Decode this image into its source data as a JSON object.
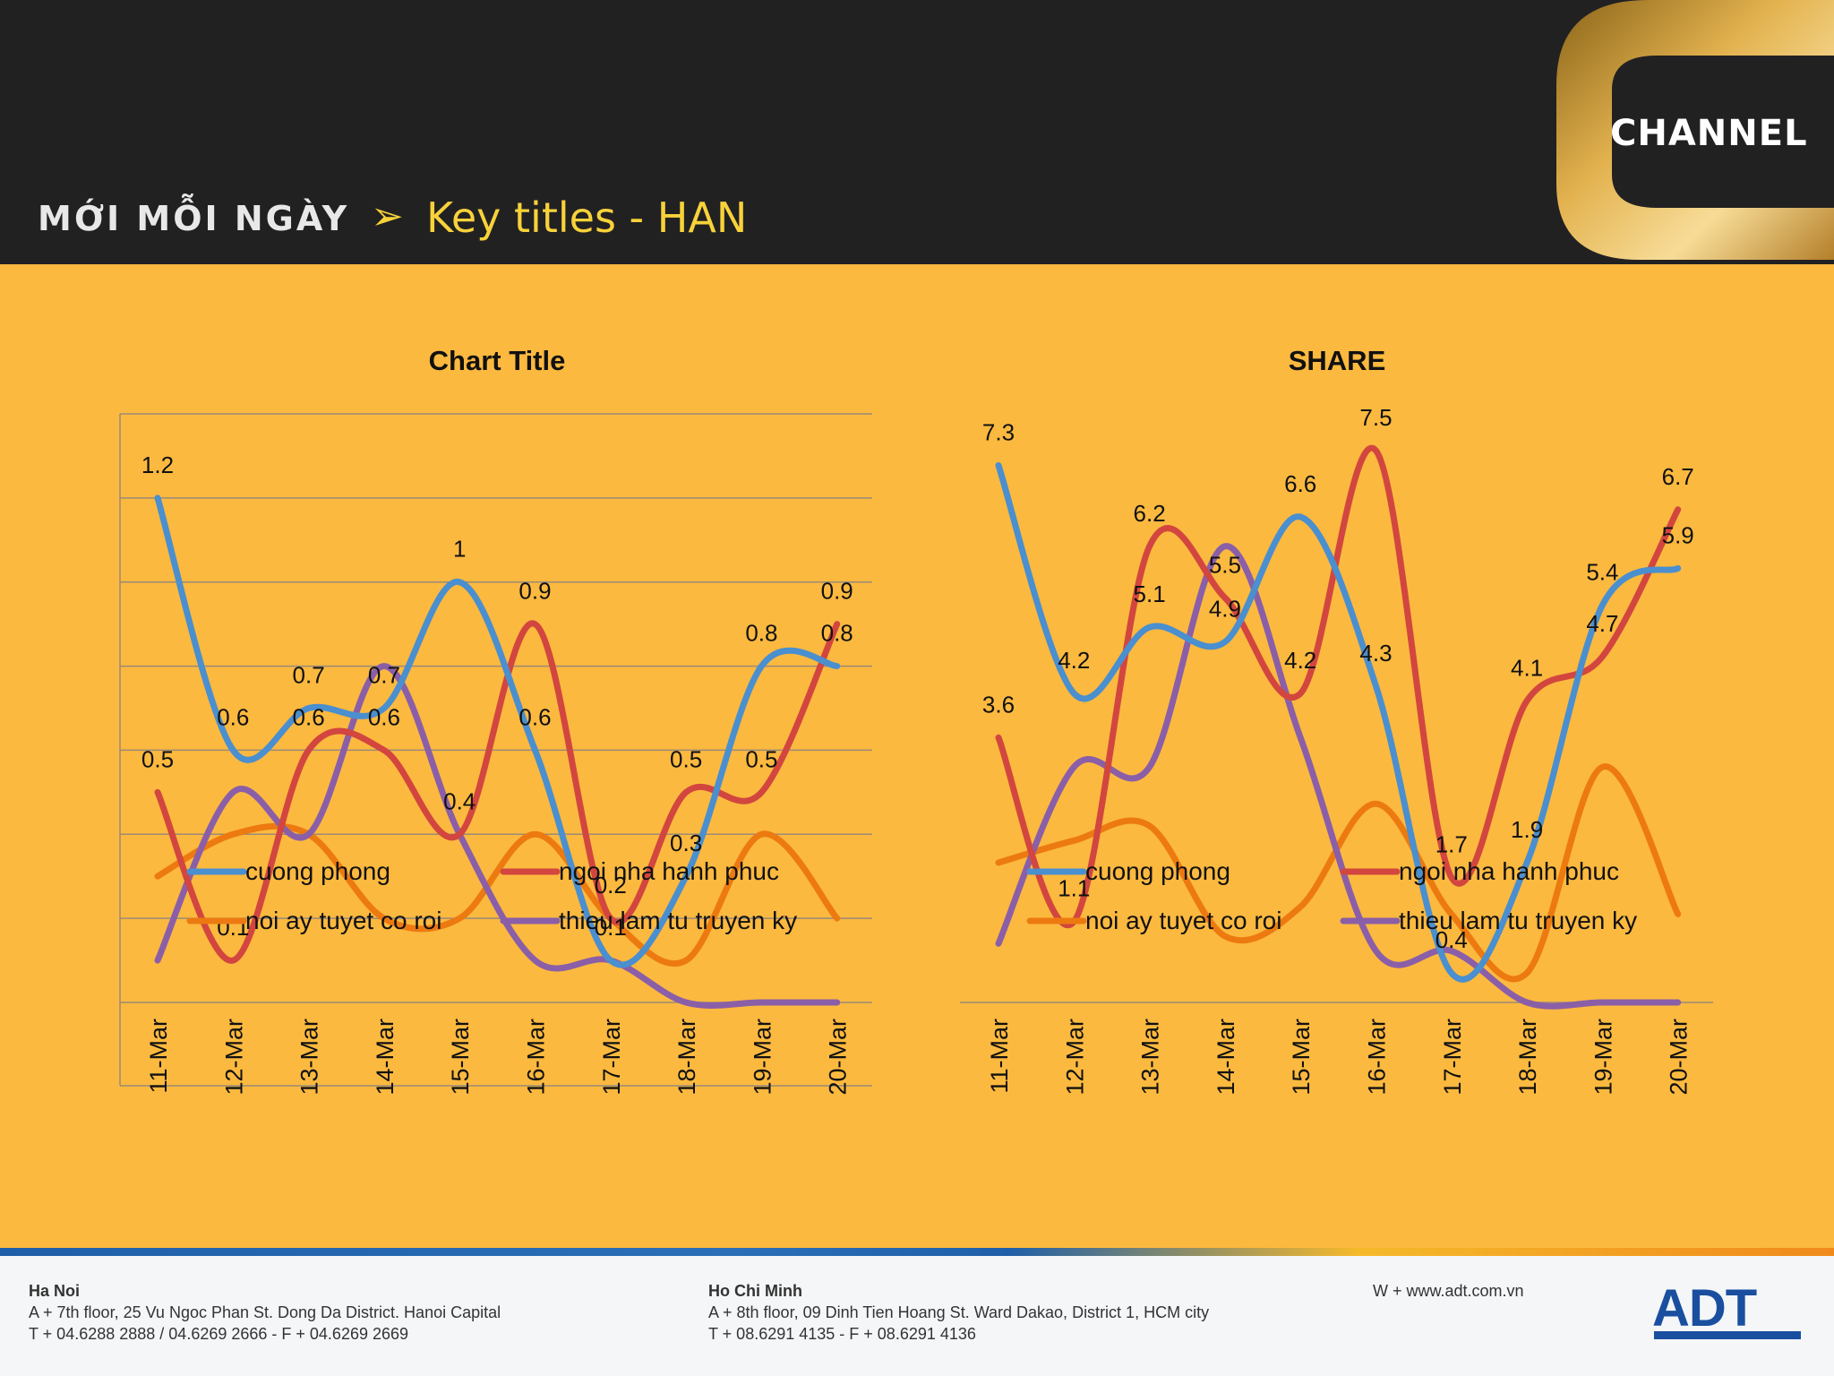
{
  "header": {
    "brand": "MỚI MỖI NGÀY",
    "arrow": "➢",
    "title": "Key titles - HAN",
    "logo_text": "CHANNEL"
  },
  "colors": {
    "background": "#fcb93f",
    "header": "#222122",
    "title": "#f8d23a",
    "cuong_phong": "#4a8fcf",
    "ngoi_nha_hanh_phuc": "#d2463f",
    "noi_ay_tuyet_co_roi": "#ec7a10",
    "thieu_lam_tu_truyen_ky": "#8a5fa8"
  },
  "chart_data": [
    {
      "type": "line",
      "title": "Chart Title",
      "categories": [
        "11-Mar",
        "12-Mar",
        "13-Mar",
        "14-Mar",
        "15-Mar",
        "16-Mar",
        "17-Mar",
        "18-Mar",
        "19-Mar",
        "20-Mar"
      ],
      "ylim": [
        0,
        1.4
      ],
      "grid": true,
      "legend": "bottom",
      "series": [
        {
          "name": "cuong phong",
          "values": [
            1.2,
            0.6,
            0.7,
            0.7,
            1,
            0.6,
            0.1,
            0.3,
            0.8,
            0.8
          ],
          "labels": [
            "1.2",
            "0.6",
            "0.7",
            "0.7",
            "1",
            "0.6",
            "0.1",
            "0.3",
            "0.8",
            "0.8"
          ]
        },
        {
          "name": "ngoi nha hanh phuc",
          "values": [
            0.5,
            0.1,
            0.6,
            0.6,
            0.4,
            0.9,
            0.2,
            0.5,
            0.5,
            0.9
          ],
          "labels": [
            "0.5",
            "0.1",
            "0.6",
            "0.6",
            "0.4",
            "0.9",
            "0.2",
            "0.5",
            "0.5",
            "0.9"
          ]
        },
        {
          "name": "noi ay tuyet co roi",
          "values": [
            0.3,
            0.4,
            0.4,
            0.2,
            0.2,
            0.4,
            0.2,
            0.1,
            0.4,
            0.2
          ],
          "labels": []
        },
        {
          "name": "thieu lam tu truyen ky",
          "values": [
            0.1,
            0.5,
            0.4,
            0.8,
            0.4,
            0.1,
            0.1,
            0,
            0,
            0
          ],
          "labels": []
        }
      ]
    },
    {
      "type": "line",
      "title": "SHARE",
      "categories": [
        "11-Mar",
        "12-Mar",
        "13-Mar",
        "14-Mar",
        "15-Mar",
        "16-Mar",
        "17-Mar",
        "18-Mar",
        "19-Mar",
        "20-Mar"
      ],
      "ylim": [
        0,
        8
      ],
      "grid": false,
      "legend": "bottom",
      "series": [
        {
          "name": "cuong phong",
          "values": [
            7.3,
            4.2,
            5.1,
            4.9,
            6.6,
            4.3,
            0.4,
            1.9,
            5.4,
            5.9
          ],
          "labels": [
            "7.3",
            "4.2",
            "5.1",
            "4.9",
            "6.6",
            "4.3",
            "0.4",
            "1.9",
            "5.4",
            "5.9"
          ]
        },
        {
          "name": "ngoi nha hanh phuc",
          "values": [
            3.6,
            1.1,
            6.2,
            5.5,
            4.2,
            7.5,
            1.7,
            4.1,
            4.7,
            6.7
          ],
          "labels": [
            "3.6",
            "1.1",
            "6.2",
            "5.5",
            "4.2",
            "7.5",
            "1.7",
            "4.1",
            "4.7",
            "6.7"
          ]
        },
        {
          "name": "noi ay tuyet co roi",
          "values": [
            1.9,
            2.2,
            2.4,
            0.9,
            1.3,
            2.7,
            1.2,
            0.4,
            3.2,
            1.2
          ],
          "labels": []
        },
        {
          "name": "thieu lam tu truyen ky",
          "values": [
            0.8,
            3.2,
            3.2,
            6.2,
            3.6,
            0.7,
            0.7,
            0,
            0,
            0
          ],
          "labels": []
        }
      ]
    }
  ],
  "footer": {
    "hanoi": {
      "city": "Ha Noi",
      "address": "A + 7th floor, 25 Vu Ngoc Phan St. Dong Da District. Hanoi Capital",
      "phone": "T + 04.6288 2888 / 04.6269 2666 - F + 04.6269 2669"
    },
    "hcm": {
      "city": "Ho Chi Minh",
      "address": "A + 8th floor, 09 Dinh Tien Hoang St. Ward Dakao, District 1, HCM city",
      "phone": "T + 08.6291 4135 - F + 08.6291 4136"
    },
    "web": "W + www.adt.com.vn",
    "logo_text": "ADT"
  }
}
